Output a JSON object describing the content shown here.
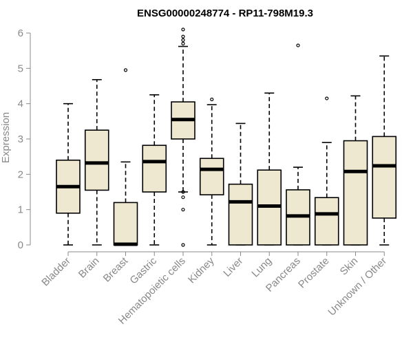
{
  "chart_data": {
    "type": "boxplot",
    "title": "ENSG00000248774 - RP11-798M19.3",
    "ylabel": "Expression",
    "xlabel": "",
    "ylim": [
      0,
      6
    ],
    "yticks": [
      0,
      1,
      2,
      3,
      4,
      5,
      6
    ],
    "box_fill": "#EEE8D0",
    "categories": [
      "Bladder",
      "Brain",
      "Breast",
      "Gastric",
      "Hematopoietic cells",
      "Kidney",
      "Liver",
      "Lung",
      "Pancreas",
      "Prostate",
      "Skin",
      "Unknown / Other"
    ],
    "series": [
      {
        "name": "Bladder",
        "min": 0,
        "q1": 0.9,
        "median": 1.65,
        "q3": 2.4,
        "max": 4.0,
        "outliers": []
      },
      {
        "name": "Brain",
        "min": 0,
        "q1": 1.55,
        "median": 2.32,
        "q3": 3.25,
        "max": 4.68,
        "outliers": []
      },
      {
        "name": "Breast",
        "min": 0,
        "q1": 0,
        "median": 0.02,
        "q3": 1.2,
        "max": 2.35,
        "outliers": [
          4.95
        ]
      },
      {
        "name": "Gastric",
        "min": 0,
        "q1": 1.5,
        "median": 2.36,
        "q3": 2.82,
        "max": 4.25,
        "outliers": []
      },
      {
        "name": "Hematopoietic cells",
        "min": 1.5,
        "q1": 3.0,
        "median": 3.55,
        "q3": 4.05,
        "max": 5.62,
        "outliers": [
          0,
          1.0,
          1.35,
          1.5,
          5.7,
          5.8,
          5.9,
          6.1
        ]
      },
      {
        "name": "Kidney",
        "min": 0,
        "q1": 1.42,
        "median": 2.14,
        "q3": 2.45,
        "max": 3.97,
        "outliers": [
          4.12
        ]
      },
      {
        "name": "Liver",
        "min": 0,
        "q1": 0,
        "median": 1.22,
        "q3": 1.72,
        "max": 3.44,
        "outliers": []
      },
      {
        "name": "Lung",
        "min": 0,
        "q1": 0,
        "median": 1.1,
        "q3": 2.12,
        "max": 4.3,
        "outliers": []
      },
      {
        "name": "Pancreas",
        "min": 0,
        "q1": 0,
        "median": 0.82,
        "q3": 1.56,
        "max": 2.2,
        "outliers": [
          5.65
        ]
      },
      {
        "name": "Prostate",
        "min": 0,
        "q1": 0,
        "median": 0.88,
        "q3": 1.34,
        "max": 2.9,
        "outliers": [
          4.15
        ]
      },
      {
        "name": "Skin",
        "min": 0,
        "q1": 0,
        "median": 2.08,
        "q3": 2.95,
        "max": 4.22,
        "outliers": []
      },
      {
        "name": "Unknown / Other",
        "min": 0,
        "q1": 0.76,
        "median": 2.24,
        "q3": 3.07,
        "max": 5.35,
        "outliers": []
      }
    ]
  }
}
